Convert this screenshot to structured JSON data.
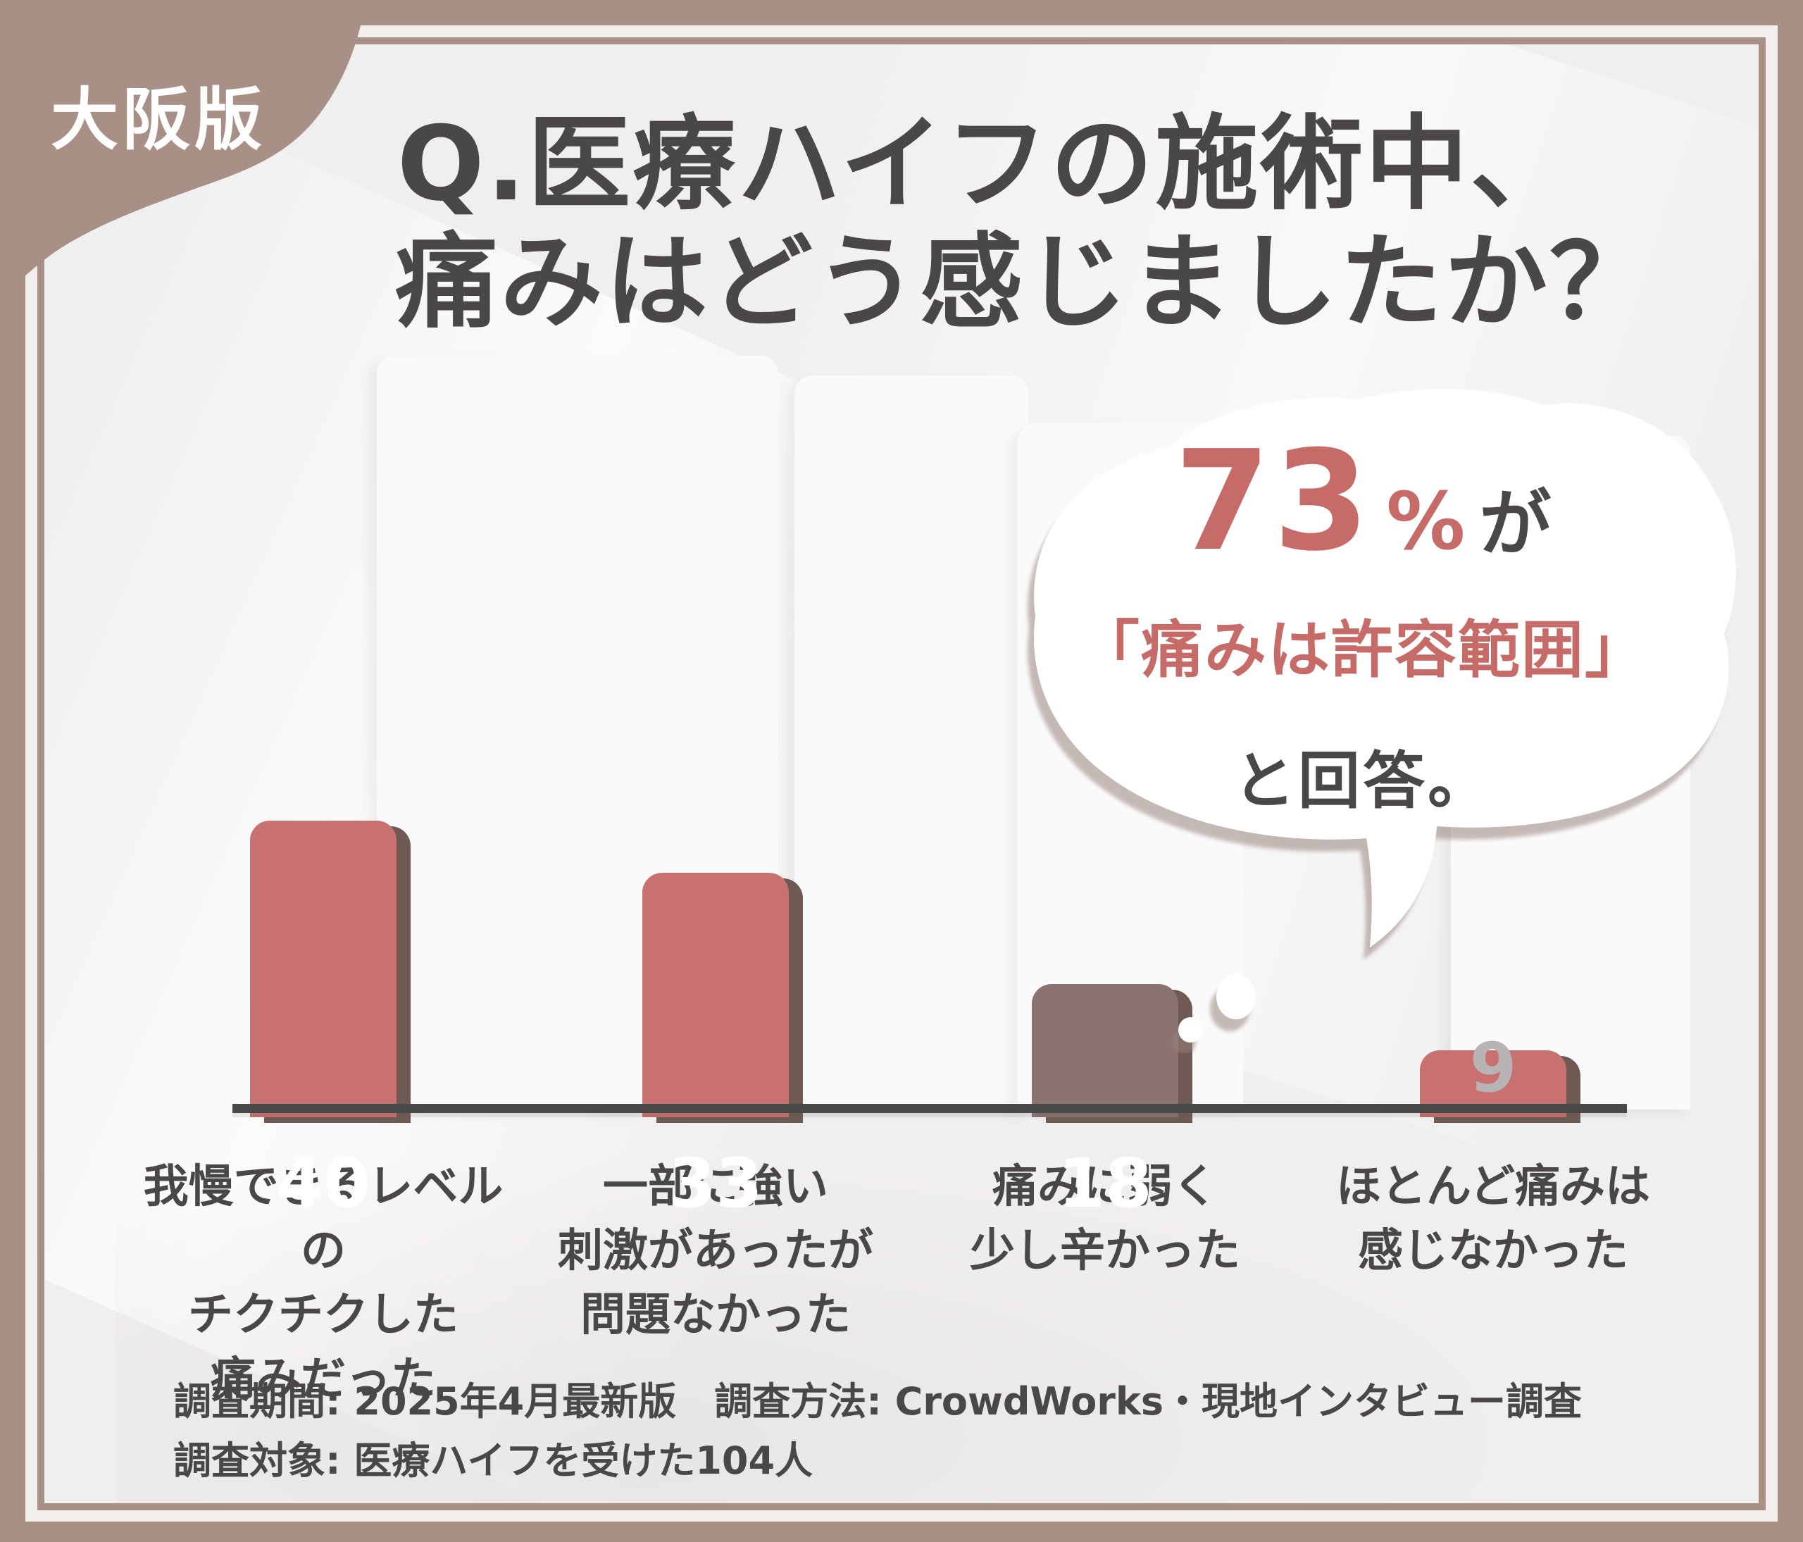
{
  "badge": {
    "label": "大阪版"
  },
  "title": {
    "line1": "Q.医療ハイフの施術中、",
    "line2": "痛みはどう感じましたか？"
  },
  "callout": {
    "headline_value": "73",
    "headline_unit": "%",
    "headline_suffix": "が",
    "quote": "「痛みは許容範囲」",
    "tail_text": "と回答。"
  },
  "chart_data": {
    "type": "bar",
    "title": "Q.医療ハイフの施術中、痛みはどう感じましたか？",
    "categories": [
      "我慢できるレベルの\nチクチクした\n痛みだった",
      "一部に強い\n刺激があったが\n問題なかった",
      "痛みに弱く\n少し辛かった",
      "ほとんど痛みは\n感じなかった"
    ],
    "values": [
      40,
      33,
      18,
      9
    ],
    "bar_colors": [
      "#c97170",
      "#c97170",
      "#8a7371",
      "#c97170"
    ],
    "value_label_positions": [
      "inside",
      "inside",
      "inside",
      "outside"
    ],
    "annotation": "73%が「痛みは許容範囲」と回答。",
    "ylim": [
      0,
      45
    ],
    "grid": false,
    "legend": false
  },
  "footer": {
    "line1": "調査期間: 2025年4月最新版　調査方法: CrowdWorks・現地インタビュー調査",
    "line2": "調査対象: 医療ハイフを受けた104人"
  },
  "colors": {
    "frame": "#a89086",
    "frame_stripe": "#f2efec",
    "content_bg": "#f0efef",
    "track": "#fbfafb",
    "bar_salmon": "#c97170",
    "bar_brown": "#8a7371",
    "bar_shadow": "#6e5a52",
    "axis": "#494949",
    "text_dark": "#4a4747",
    "accent_text": "#c76b69",
    "value_label_outside": "#b8b3b5",
    "bubble_shadow": "#9a837c"
  }
}
